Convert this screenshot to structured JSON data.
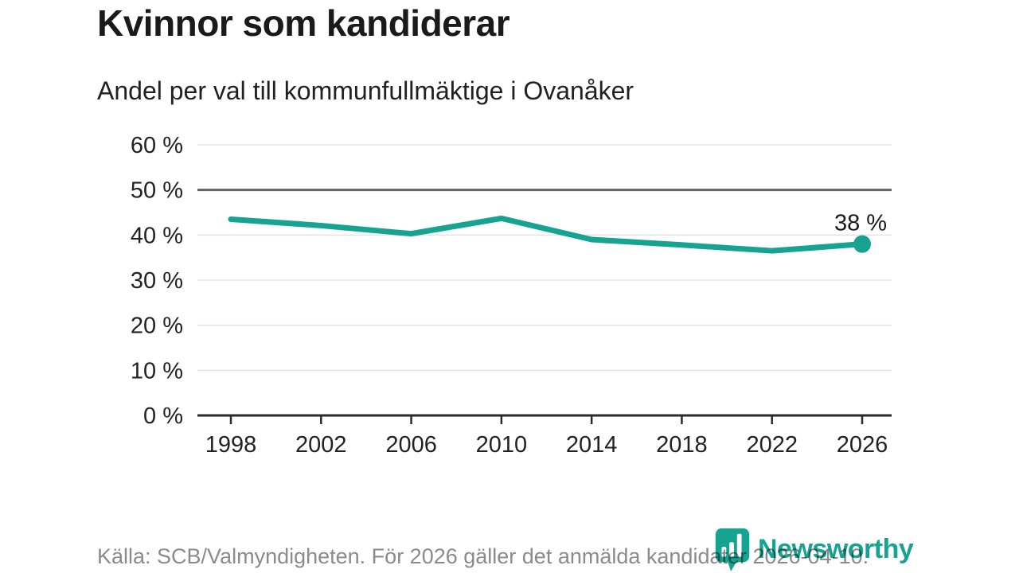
{
  "page": {
    "title": "Kvinnor som kandiderar",
    "subtitle": "Andel per val till kommunfullmäktige i Ovanåker",
    "source_note": "Källa: SCB/Valmyndigheten. För 2026 gäller det anmälda kandidater 2026-04-10.",
    "brand": "Newsworthy"
  },
  "colors": {
    "accent": "#17a392",
    "grid": "#e3e3e3",
    "reference_line": "#64646e",
    "axis": "#2b2b2b",
    "text": "#222222",
    "label_text": "#1a1a1a",
    "muted_text": "#8b8b8b"
  },
  "chart_data": {
    "type": "line",
    "title": "Kvinnor som kandiderar",
    "subtitle": "Andel per val till kommunfullmäktige i Ovanåker",
    "categories": [
      "1998",
      "2002",
      "2006",
      "2010",
      "2014",
      "2018",
      "2022",
      "2026"
    ],
    "values": [
      43.5,
      42.1,
      40.3,
      43.7,
      39.0,
      37.8,
      36.5,
      38.0
    ],
    "xlabel": "",
    "ylabel": "",
    "ylim": [
      0,
      60
    ],
    "yticks": [
      {
        "value": 0,
        "label": "0 %"
      },
      {
        "value": 10,
        "label": "10 %"
      },
      {
        "value": 20,
        "label": "20 %"
      },
      {
        "value": 30,
        "label": "30 %"
      },
      {
        "value": 40,
        "label": "40 %"
      },
      {
        "value": 50,
        "label": "50 %"
      },
      {
        "value": 60,
        "label": "60 %"
      }
    ],
    "reference_line_y": 50,
    "grid": true,
    "legend": false,
    "end_point_label": "38 %"
  }
}
